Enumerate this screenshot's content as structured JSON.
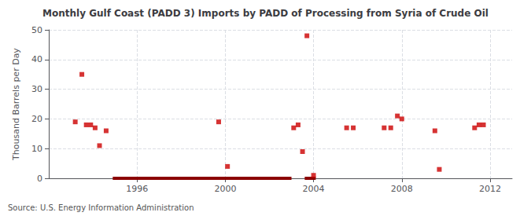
{
  "chart_data": {
    "type": "scatter",
    "title": "Monthly Gulf Coast (PADD 3) Imports by PADD of Processing from Syria of Crude Oil",
    "ylabel": "Thousand Barrels per Day",
    "source": "Source: U.S. Energy Information Administration",
    "xlim": [
      1992,
      2013
    ],
    "ylim": [
      0,
      50
    ],
    "xticks": [
      1996,
      2000,
      2004,
      2008,
      2012
    ],
    "yticks": [
      0,
      10,
      20,
      30,
      40,
      50
    ],
    "grid": true,
    "series": [
      {
        "type": "scatter",
        "color": "#cc0000",
        "marker": "square",
        "x": [
          1993.2,
          1993.5,
          1993.7,
          1993.9,
          1994.1,
          1994.3,
          1994.6,
          1999.7,
          2000.1,
          2003.1,
          2003.3,
          2003.5,
          2003.7,
          2004.0,
          2005.5,
          2005.8,
          2007.2,
          2007.5,
          2007.8,
          2008.0,
          2009.5,
          2009.7,
          2011.3,
          2011.5,
          2011.7
        ],
        "values": [
          19,
          35,
          18,
          18,
          17,
          11,
          16,
          19,
          4,
          17,
          18,
          9,
          48,
          1,
          17,
          17,
          17,
          17,
          21,
          20,
          16,
          3,
          17,
          18,
          18
        ]
      },
      {
        "type": "line",
        "color": "#8b0000",
        "x": [
          1994.9,
          2003.0
        ],
        "values": [
          0,
          0
        ]
      },
      {
        "type": "line",
        "color": "#8b0000",
        "x": [
          2003.6,
          2004.1
        ],
        "values": [
          0,
          0
        ]
      }
    ]
  }
}
